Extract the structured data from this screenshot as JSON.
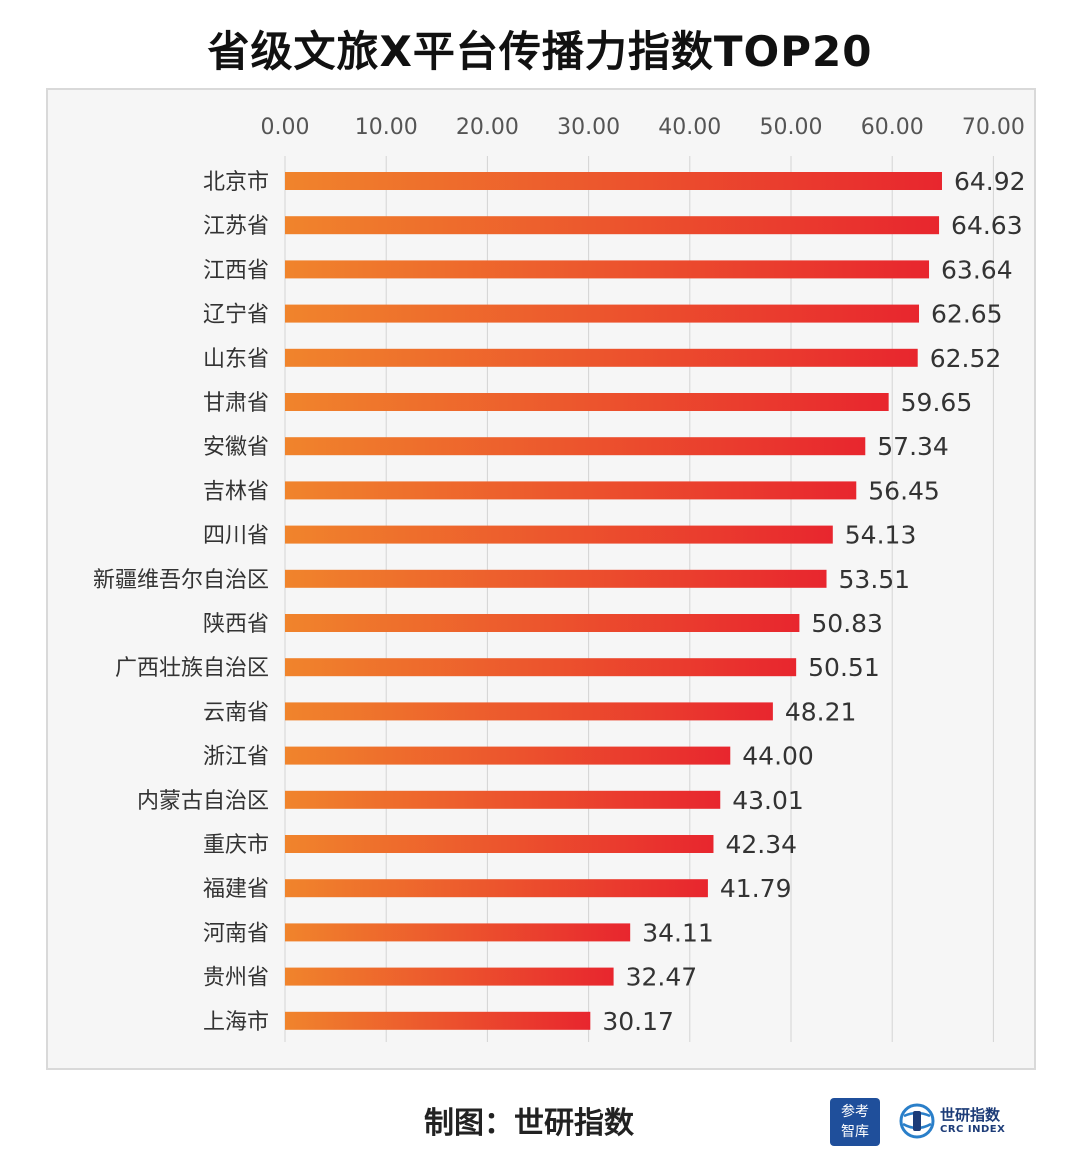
{
  "title": "省级文旅X平台传播力指数TOP20",
  "footer": "制图：世研指数",
  "logos": {
    "cankao_line1": "参考",
    "cankao_line2": "智库",
    "crc_cn": "世研指数",
    "crc_en": "CRC INDEX"
  },
  "colors": {
    "bar_start": "#f0842c",
    "bar_end": "#e8262e",
    "grid": "#d4d4d4",
    "panel_background": "#f6f6f6"
  },
  "chart_data": {
    "type": "bar",
    "orientation": "horizontal",
    "title": "省级文旅X平台传播力指数TOP20",
    "xlim": [
      0,
      70
    ],
    "ticks": [
      "0.00",
      "10.00",
      "20.00",
      "30.00",
      "40.00",
      "50.00",
      "60.00",
      "70.00"
    ],
    "axis_position": "top",
    "grid": true,
    "categories": [
      "北京市",
      "江苏省",
      "江西省",
      "辽宁省",
      "山东省",
      "甘肃省",
      "安徽省",
      "吉林省",
      "四川省",
      "新疆维吾尔自治区",
      "陕西省",
      "广西壮族自治区",
      "云南省",
      "浙江省",
      "内蒙古自治区",
      "重庆市",
      "福建省",
      "河南省",
      "贵州省",
      "上海市"
    ],
    "values": [
      64.92,
      64.63,
      63.64,
      62.65,
      62.52,
      59.65,
      57.34,
      56.45,
      54.13,
      53.51,
      50.83,
      50.51,
      48.21,
      44.0,
      43.01,
      42.34,
      41.79,
      34.11,
      32.47,
      30.17
    ],
    "value_labels": [
      "64.92",
      "64.63",
      "63.64",
      "62.65",
      "62.52",
      "59.65",
      "57.34",
      "56.45",
      "54.13",
      "53.51",
      "50.83",
      "50.51",
      "48.21",
      "44.00",
      "43.01",
      "42.34",
      "41.79",
      "34.11",
      "32.47",
      "30.17"
    ]
  }
}
